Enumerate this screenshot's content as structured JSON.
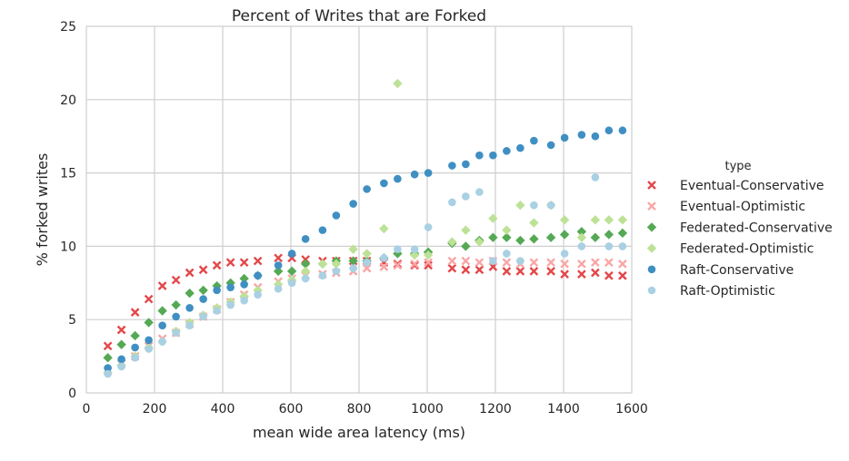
{
  "chart_data": {
    "type": "scatter",
    "title": "Percent of Writes that are Forked",
    "xlabel": "mean wide area latency (ms)",
    "ylabel": "% forked writes",
    "xlim": [
      0,
      1600
    ],
    "ylim": [
      0,
      25
    ],
    "xticks": [
      0,
      200,
      400,
      600,
      800,
      1000,
      1200,
      1400,
      1600
    ],
    "yticks": [
      0,
      5,
      10,
      15,
      20,
      25
    ],
    "grid": true,
    "legend": {
      "title": "type",
      "placement": "right"
    },
    "series": [
      {
        "name": "Eventual-Conservative",
        "marker": "x",
        "color": "#e3484a",
        "x": [
          63,
          103,
          143,
          183,
          223,
          263,
          303,
          343,
          383,
          423,
          463,
          503,
          563,
          603,
          643,
          693,
          733,
          783,
          823,
          873,
          913,
          963,
          1003,
          1073,
          1113,
          1153,
          1193,
          1233,
          1273,
          1313,
          1363,
          1403,
          1453,
          1493,
          1533,
          1573
        ],
        "y": [
          3.2,
          4.3,
          5.5,
          6.4,
          7.3,
          7.7,
          8.2,
          8.4,
          8.7,
          8.9,
          8.9,
          9.0,
          9.2,
          9.2,
          9.1,
          9.0,
          9.0,
          9.0,
          9.0,
          8.9,
          8.8,
          8.7,
          8.7,
          8.5,
          8.4,
          8.4,
          8.6,
          8.3,
          8.3,
          8.3,
          8.3,
          8.1,
          8.1,
          8.2,
          8.0,
          8.0
        ]
      },
      {
        "name": "Eventual-Optimistic",
        "marker": "x",
        "color": "#f9a5a6",
        "x": [
          63,
          103,
          143,
          183,
          223,
          263,
          303,
          343,
          383,
          423,
          463,
          503,
          563,
          603,
          643,
          693,
          733,
          783,
          823,
          873,
          913,
          963,
          1003,
          1073,
          1113,
          1153,
          1193,
          1233,
          1273,
          1313,
          1363,
          1403,
          1453,
          1493,
          1533,
          1573
        ],
        "y": [
          1.5,
          2.0,
          2.5,
          3.2,
          3.7,
          4.1,
          4.7,
          5.2,
          5.7,
          6.2,
          6.7,
          7.2,
          7.6,
          7.8,
          8.0,
          8.1,
          8.2,
          8.3,
          8.5,
          8.6,
          8.7,
          8.8,
          8.9,
          9.0,
          9.0,
          8.9,
          9.0,
          8.9,
          8.8,
          8.9,
          8.9,
          8.8,
          8.8,
          8.9,
          8.9,
          8.8
        ]
      },
      {
        "name": "Federated-Conservative",
        "marker": "diamond",
        "color": "#55a955",
        "x": [
          63,
          103,
          143,
          183,
          223,
          263,
          303,
          343,
          383,
          423,
          463,
          503,
          563,
          603,
          643,
          693,
          733,
          783,
          823,
          873,
          913,
          963,
          1003,
          1073,
          1113,
          1153,
          1193,
          1233,
          1273,
          1313,
          1363,
          1403,
          1453,
          1493,
          1533,
          1573
        ],
        "y": [
          2.4,
          3.3,
          3.9,
          4.8,
          5.6,
          6.0,
          6.8,
          7.0,
          7.3,
          7.5,
          7.8,
          8.0,
          8.3,
          8.3,
          8.8,
          8.8,
          9.0,
          9.0,
          9.0,
          9.2,
          9.5,
          9.5,
          9.6,
          10.2,
          10.0,
          10.4,
          10.6,
          10.6,
          10.4,
          10.5,
          10.6,
          10.8,
          11.0,
          10.6,
          10.8,
          10.9
        ]
      },
      {
        "name": "Federated-Optimistic",
        "marker": "diamond",
        "color": "#bde297",
        "x": [
          63,
          103,
          143,
          183,
          223,
          263,
          303,
          343,
          383,
          423,
          463,
          503,
          563,
          603,
          643,
          693,
          733,
          783,
          823,
          873,
          913,
          963,
          1003,
          1073,
          1113,
          1153,
          1193,
          1233,
          1273,
          1313,
          1363,
          1403,
          1453,
          1493,
          1533,
          1573
        ],
        "y": [
          1.4,
          1.9,
          2.5,
          3.1,
          3.5,
          4.2,
          4.8,
          5.3,
          5.8,
          6.2,
          6.6,
          7.0,
          7.4,
          7.7,
          8.3,
          8.8,
          8.8,
          9.8,
          9.5,
          11.2,
          21.1,
          9.4,
          9.4,
          10.3,
          11.1,
          10.3,
          11.9,
          11.1,
          12.8,
          11.6,
          12.8,
          11.8,
          10.6,
          11.8,
          11.8,
          11.8
        ]
      },
      {
        "name": "Raft-Conservative",
        "marker": "circle",
        "color": "#3f8fc3",
        "x": [
          63,
          103,
          143,
          183,
          223,
          263,
          303,
          343,
          383,
          423,
          463,
          503,
          563,
          603,
          643,
          693,
          733,
          783,
          823,
          873,
          913,
          963,
          1003,
          1073,
          1113,
          1153,
          1193,
          1233,
          1273,
          1313,
          1363,
          1403,
          1453,
          1493,
          1533,
          1573
        ],
        "y": [
          1.7,
          2.3,
          3.1,
          3.6,
          4.6,
          5.2,
          5.8,
          6.4,
          7.0,
          7.2,
          7.4,
          8.0,
          8.7,
          9.5,
          10.5,
          11.1,
          12.1,
          12.9,
          13.9,
          14.3,
          14.6,
          14.9,
          15.0,
          15.5,
          15.6,
          16.2,
          16.2,
          16.5,
          16.7,
          17.2,
          16.9,
          17.4,
          17.6,
          17.5,
          17.9,
          17.9
        ]
      },
      {
        "name": "Raft-Optimistic",
        "marker": "circle",
        "color": "#a9d0e3",
        "x": [
          63,
          103,
          143,
          183,
          223,
          263,
          303,
          343,
          383,
          423,
          463,
          503,
          563,
          603,
          643,
          693,
          733,
          783,
          823,
          873,
          913,
          963,
          1003,
          1073,
          1113,
          1153,
          1193,
          1233,
          1273,
          1313,
          1363,
          1403,
          1453,
          1493,
          1533,
          1573
        ],
        "y": [
          1.3,
          1.8,
          2.4,
          3.0,
          3.5,
          4.1,
          4.6,
          5.2,
          5.6,
          6.0,
          6.3,
          6.7,
          7.1,
          7.5,
          7.8,
          8.0,
          8.3,
          8.5,
          8.9,
          9.2,
          9.8,
          9.8,
          11.3,
          13.0,
          13.4,
          13.7,
          9.0,
          9.5,
          9.0,
          12.8,
          12.8,
          9.5,
          10.0,
          14.7,
          10.0,
          10.0
        ]
      }
    ]
  }
}
